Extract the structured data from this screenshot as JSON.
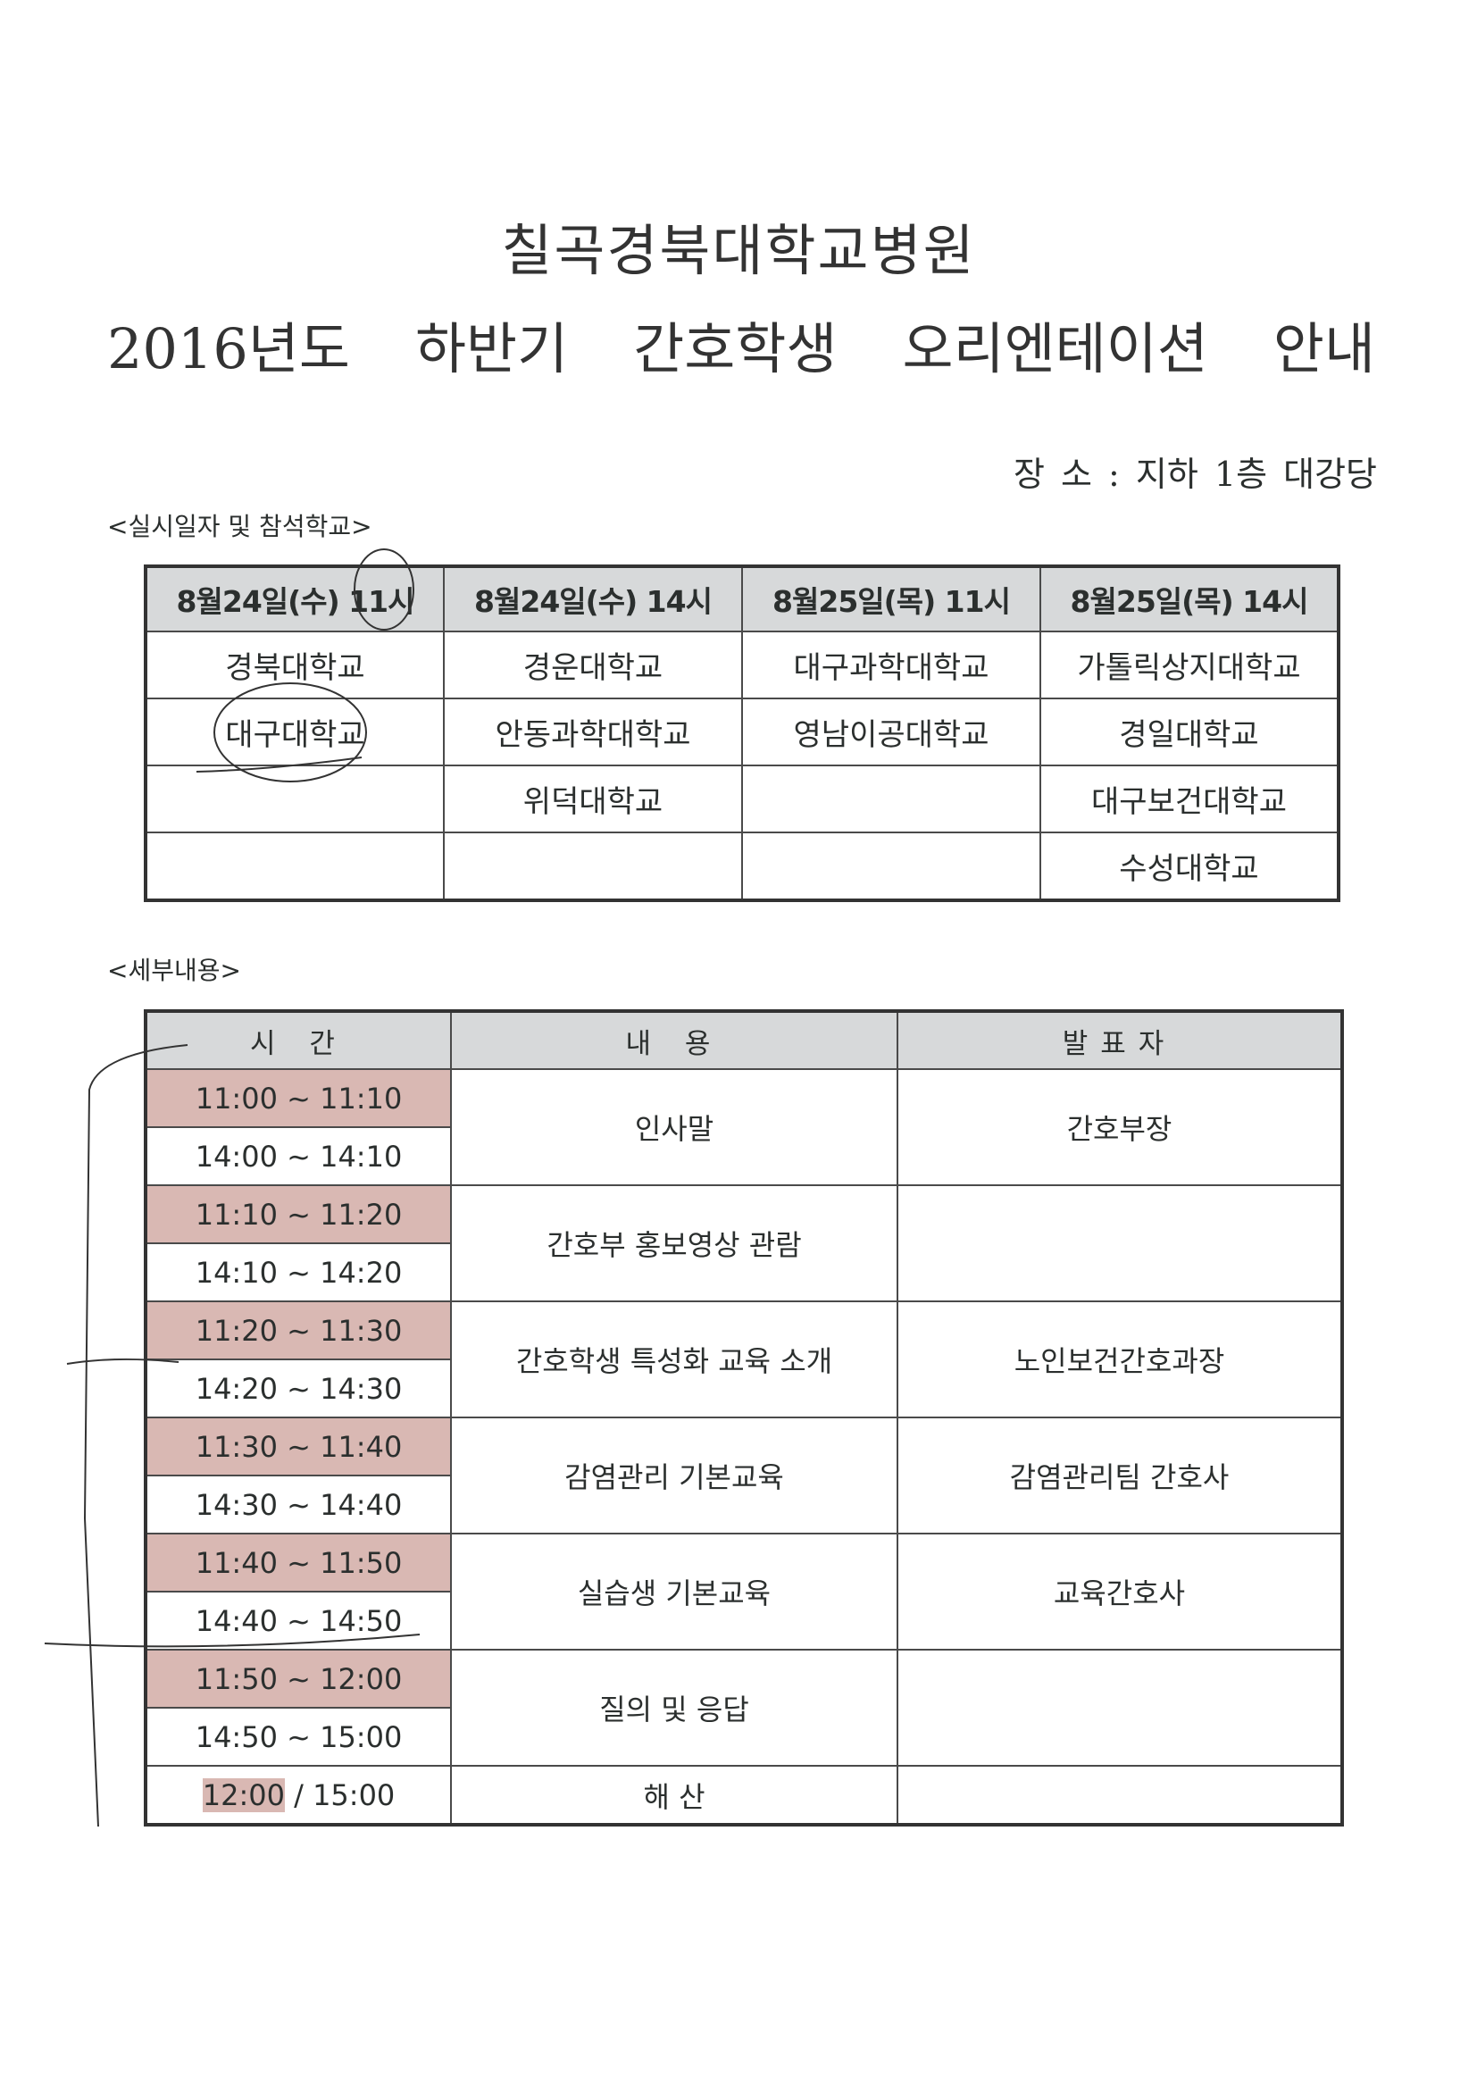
{
  "title_line1": "칠곡경북대학교병원",
  "title_line2": "2016년도 하반기 간호학생 오리엔테이션 안내",
  "location": "장 소 : 지하 1층 대강당",
  "section1_label": "<실시일자 및 참석학교>",
  "schools_table": {
    "headers": [
      "8월24일(수) 11시",
      "8월24일(수) 14시",
      "8월25일(목) 11시",
      "8월25일(목) 14시"
    ],
    "rows": [
      [
        "경북대학교",
        "경운대학교",
        "대구과학대학교",
        "가톨릭상지대학교"
      ],
      [
        "대구대학교",
        "안동과학대학교",
        "영남이공대학교",
        "경일대학교"
      ],
      [
        "",
        "위덕대학교",
        "",
        "대구보건대학교"
      ],
      [
        "",
        "",
        "",
        "수성대학교"
      ]
    ]
  },
  "section2_label": "<세부내용>",
  "detail_table": {
    "headers": [
      "시 간",
      "내 용",
      "발표자"
    ],
    "rows": [
      {
        "am": "11:00 ~ 11:10",
        "pm": "14:00 ~ 14:10",
        "content": "인사말",
        "presenter": "간호부장"
      },
      {
        "am": "11:10 ~ 11:20",
        "pm": "14:10 ~ 14:20",
        "content": "간호부 홍보영상 관람",
        "presenter": ""
      },
      {
        "am": "11:20 ~ 11:30",
        "pm": "14:20 ~ 14:30",
        "content": "간호학생 특성화 교육 소개",
        "presenter": "노인보건간호과장"
      },
      {
        "am": "11:30 ~ 11:40",
        "pm": "14:30 ~ 14:40",
        "content": "감염관리 기본교육",
        "presenter": "감염관리팀 간호사"
      },
      {
        "am": "11:40 ~ 11:50",
        "pm": "14:40 ~ 14:50",
        "content": "실습생 기본교육",
        "presenter": "교육간호사"
      },
      {
        "am": "11:50 ~ 12:00",
        "pm": "14:50 ~ 15:00",
        "content": "질의 및 응답",
        "presenter": ""
      }
    ],
    "end": {
      "am": "12:00",
      "sep": " / ",
      "pm": "15:00",
      "content": "해 산"
    }
  },
  "colors": {
    "header_gray": "#d7d9da",
    "am_highlight": "#d9b8b3",
    "ink": "#2b2f2e"
  }
}
